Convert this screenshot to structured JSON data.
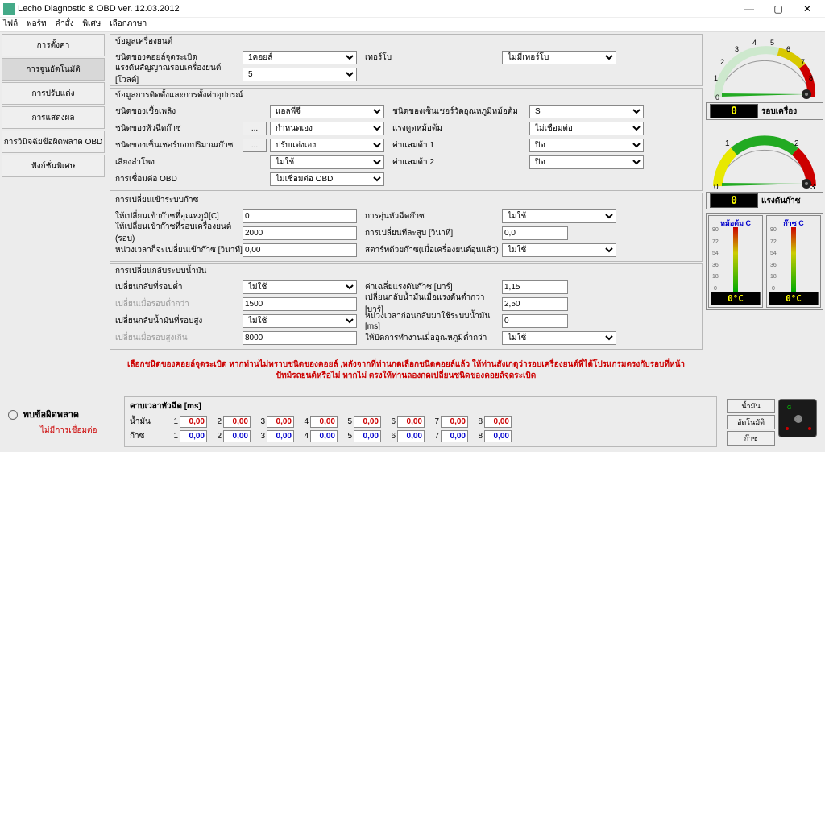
{
  "window": {
    "title": "Lecho Diagnostic & OBD ver. 12.03.2012",
    "minimize": "—",
    "maximize": "▢",
    "close": "✕"
  },
  "menu": [
    "ไฟล์",
    "พอร์ท",
    "คำสั่ง",
    "พิเศษ",
    "เลือกภาษา"
  ],
  "sidebar": [
    {
      "label": "การตั้งค่า"
    },
    {
      "label": "การจูนอัตโนมัติ"
    },
    {
      "label": "การปรับแต่ง"
    },
    {
      "label": "การแสดงผล"
    },
    {
      "label": "การวินิจฉัยข้อผิดพลาด OBD"
    },
    {
      "label": "ฟังก์ชั่นพิเศษ"
    }
  ],
  "grp1": {
    "legend": "ข้อมูลเครื่องยนต์",
    "r1": {
      "lbl": "ชนิดของคอยล์จุดระเบิด",
      "val": "1คอยล์",
      "lbl2": "เทอร์โบ",
      "val2": "ไม่มีเทอร์โบ"
    },
    "r2": {
      "lbl": "แรงดันสัญญาณรอบเครื่องยนต์ [โวลต์]",
      "val": "5"
    }
  },
  "grp2": {
    "legend": "ข้อมูลการติดตั้งและการตั้งค่าอุปกรณ์",
    "r1": {
      "lbl": "ชนิดของเชื้อเพลิง",
      "val": "แอลพีจี",
      "lbl2": "ชนิดของเซ็นเชอร์วัดอุณหภูมิหม้อต้ม",
      "val2": "S"
    },
    "r2": {
      "lbl": "ชนิดของหัวฉีดก๊าซ",
      "btn": "...",
      "val": "กำหนดเอง",
      "lbl2": "แรงดูดหม้อต้ม",
      "val2": "ไม่เชื่อมต่อ"
    },
    "r3": {
      "lbl": "ชนิดของเซ็นเชอร์บอกปริมาณก๊าซ",
      "btn": "...",
      "val": "ปรับแต่งเอง",
      "lbl2": "ค่าแลมด้า 1",
      "val2": "ปิด"
    },
    "r4": {
      "lbl": "เสียงลำโพง",
      "val": "ไม่ใช้",
      "lbl2": "ค่าแลมด้า 2",
      "val2": "ปิด"
    },
    "r5": {
      "lbl": "การเชื่อมต่อ OBD",
      "val": "ไม่เชื่อมต่อ OBD"
    }
  },
  "grp3": {
    "legend": "การเปลี่ยนเข้าระบบก๊าซ",
    "r1": {
      "lbl": "ให้เปลี่ยนเข้าก๊าซที่อุณหภูมิ[C]",
      "val": "0",
      "lbl2": "การอุ่นหัวฉีดก๊าซ",
      "val2": "ไม่ใช้"
    },
    "r2": {
      "lbl": "ให้เปลี่ยนเข้าก๊าซที่รอบเครื่องยนต์ (รอบ)",
      "val": "2000",
      "lbl2": "การเปลี่ยนทีละสูบ [วินาที]",
      "val2": "0,0"
    },
    "r3": {
      "lbl": "หน่วงเวลาก็จะเปลี่ยนเข้าก๊าซ [วินาที]",
      "val": "0,00",
      "lbl2": "สตาร์ทด้วยก๊าซ(เมื่อเครื่องยนต์อุ่นแล้ว)",
      "val2": "ไม่ใช้"
    }
  },
  "grp4": {
    "legend": "การเปลี่ยนกลับระบบน้ำมัน",
    "r1": {
      "lbl": "เปลี่ยนกลับที่รอบต่ำ",
      "val": "ไม่ใช้",
      "lbl2": "ค่าเฉลี่ยแรงดันก๊าซ [บาร์]",
      "val2": "1,15"
    },
    "r2": {
      "lbl": "เปลี่ยนเมื่อรอบต่ำกว่า",
      "disabled": true,
      "val": "1500",
      "lbl2": "เปลี่ยนกลับน้ำมันเมื่อแรงดันต่ำกว่า [บาร์]",
      "val2": "2,50"
    },
    "r3": {
      "lbl": "เปลี่ยนกลับน้ำมันที่รอบสูง",
      "val": "ไม่ใช้",
      "lbl2": "หน่วงเวลาก่อนกลับมาใช้ระบบน้ำมัน [ms]",
      "val2": "0"
    },
    "r4": {
      "lbl": "เปลี่ยนเมื่อรอบสูงเกิน",
      "disabled": true,
      "val": "8000",
      "lbl2": "ให้ปิดการทำงานเมื่ออุณหภูมิต่ำกว่า",
      "val2": "ไม่ใช้"
    }
  },
  "warning": "เลือกชนิดของคอยล์จุดระเบิด  หากท่านไม่ทราบชนิดของคอยล์ ,หลังจากที่ท่านกดเลือกชนิดคอยล์แล้ว ให้ท่านสังเกตุว่ารอบเครื่องยนต์ที่ได้โปรแกรมตรงกับรอบที่หน้าปัทม์รถยนต์หรือไม่ หากไม่ ตรงให้ท่านลองกดเปลี่ยนชนิดของคอยล์จุดระเบิด",
  "error": {
    "label": "พบข้อผิดพลาด",
    "noconn": "ไม่มีการเชื่อมต่อ"
  },
  "injtable": {
    "title": "คาบเวลาหัวฉีด [ms]",
    "rows": [
      {
        "label": "น้ำมัน",
        "color": "red",
        "vals": [
          "0,00",
          "0,00",
          "0,00",
          "0,00",
          "0,00",
          "0,00",
          "0,00",
          "0,00"
        ]
      },
      {
        "label": "ก๊าซ",
        "color": "blue",
        "vals": [
          "0,00",
          "0,00",
          "0,00",
          "0,00",
          "0,00",
          "0,00",
          "0,00",
          "0,00"
        ]
      }
    ]
  },
  "gauge1": {
    "label": "รอบเครื่อง",
    "value": "0",
    "ticks": [
      "0",
      "1",
      "2",
      "3",
      "4",
      "5",
      "6",
      "7",
      "8"
    ]
  },
  "gauge2": {
    "label": "แรงดันก๊าซ",
    "value": "0",
    "ticks": [
      "0",
      "1",
      "2",
      "3"
    ]
  },
  "thermo": {
    "boxes": [
      {
        "label": "หม้อต้ม C",
        "value": "0°C",
        "scale": [
          "90",
          "72",
          "54",
          "36",
          "18",
          "0"
        ]
      },
      {
        "label": "ก๊าซ C",
        "value": "0°C",
        "scale": [
          "90",
          "72",
          "54",
          "36",
          "18",
          "0"
        ]
      }
    ]
  },
  "rbtns": [
    "น้ำมัน",
    "อัตโนมัติ",
    "ก๊าซ"
  ],
  "colors": {
    "red": "#cc0000",
    "blue": "#0000cc",
    "yellow": "#ffcc00",
    "green": "#22aa22",
    "panel": "#ececec"
  }
}
